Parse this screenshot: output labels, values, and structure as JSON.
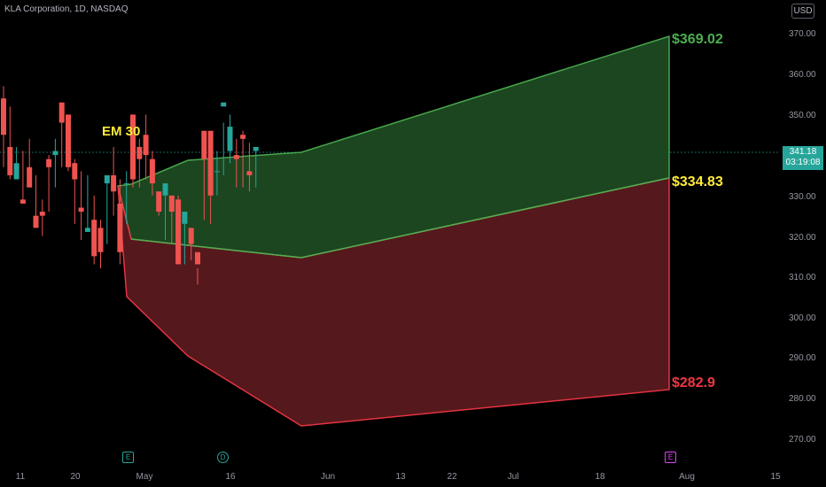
{
  "header": {
    "title": "KLA Corporation, 1D, NASDAQ",
    "currency": "USD"
  },
  "price": {
    "last": "341.18",
    "countdown": "03:19:08"
  },
  "annotations": {
    "em": "EM 30",
    "upper": "$369.02",
    "mid": "$334.83",
    "lower": "$282.9"
  },
  "events": [
    {
      "symbol": "E",
      "color": "#26a69a"
    },
    {
      "symbol": "D",
      "color": "#26a69a"
    },
    {
      "symbol": "E",
      "color": "#e040fb"
    }
  ],
  "chart_data": {
    "type": "candlestick",
    "y_axis": {
      "ticks": [
        "370.00",
        "360.00",
        "350.00",
        "340.00",
        "330.00",
        "320.00",
        "310.00",
        "300.00",
        "290.00",
        "280.00",
        "270.00"
      ],
      "range": [
        264,
        375
      ]
    },
    "x_axis": {
      "ticks": [
        "11",
        "20",
        "May",
        "16",
        "Jun",
        "13",
        "22",
        "Jul",
        "18",
        "Aug",
        "15"
      ]
    },
    "candles": [
      [
        357,
        354,
        345,
        337
      ],
      [
        352,
        342,
        335,
        334
      ],
      [
        342,
        334,
        338,
        338
      ],
      [
        341,
        329,
        328,
        328
      ],
      [
        344,
        337,
        332,
        332
      ],
      [
        335,
        325,
        322,
        323
      ],
      [
        329,
        326,
        325,
        320
      ],
      [
        340,
        339,
        337,
        326
      ],
      [
        344,
        340,
        341,
        332
      ],
      [
        348,
        353,
        348,
        337
      ],
      [
        349,
        350,
        337,
        336
      ],
      [
        339,
        338,
        334,
        323
      ],
      [
        336,
        327,
        326,
        319
      ],
      [
        335,
        321,
        322,
        321
      ],
      [
        330,
        324,
        315,
        313
      ],
      [
        324,
        322,
        316,
        312
      ],
      [
        334,
        333,
        335,
        318
      ],
      [
        342,
        335,
        331,
        325
      ],
      [
        334,
        328,
        316,
        313
      ],
      [
        336,
        333,
        333,
        323
      ],
      [
        347,
        350,
        334,
        332
      ],
      [
        344,
        342,
        339,
        332
      ],
      [
        350,
        345,
        340,
        334
      ],
      [
        341,
        339,
        333,
        330
      ],
      [
        330,
        331,
        326,
        325
      ],
      [
        330,
        330,
        333,
        319
      ],
      [
        328,
        330,
        326,
        318
      ],
      [
        330,
        329,
        313,
        317
      ],
      [
        323,
        323,
        326,
        313
      ],
      [
        322,
        322,
        318,
        314
      ],
      [
        312,
        316,
        313,
        308
      ],
      [
        342,
        346,
        339,
        324
      ],
      [
        343,
        346,
        330,
        323
      ],
      [
        341,
        336,
        336,
        330
      ],
      [
        348,
        352,
        353,
        335
      ],
      [
        350,
        341,
        347,
        338
      ],
      [
        344,
        340,
        339,
        332
      ],
      [
        346,
        345,
        344,
        332
      ],
      [
        343,
        336,
        335,
        331
      ],
      [
        341,
        341,
        342,
        332
      ]
    ]
  },
  "legend": {
    "upper_zone_color": "#1b4d24",
    "lower_zone_color": "#5d1a1f",
    "bull": "#26a69a",
    "bear": "#ef5350"
  }
}
